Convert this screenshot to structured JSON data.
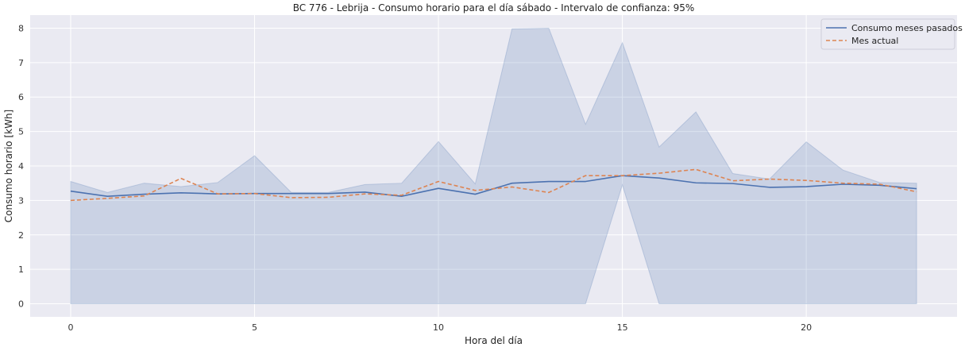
{
  "chart_data": {
    "type": "line",
    "title": "BC 776 - Lebrija - Consumo horario para el día sábado - Intervalo de confianza: 95%",
    "xlabel": "Hora del día",
    "ylabel": "Consumo horario [kWh]",
    "xlim": [
      -1.1,
      24.1
    ],
    "ylim": [
      -0.38,
      8.38
    ],
    "x_ticks": [
      0,
      5,
      10,
      15,
      20
    ],
    "y_ticks": [
      0,
      1,
      2,
      3,
      4,
      5,
      6,
      7,
      8
    ],
    "grid": true,
    "legend_position": "top-right",
    "x": [
      0,
      1,
      2,
      3,
      4,
      5,
      6,
      7,
      8,
      9,
      10,
      11,
      12,
      13,
      14,
      15,
      16,
      17,
      18,
      19,
      20,
      21,
      22,
      23
    ],
    "series": [
      {
        "name": "Consumo meses pasados",
        "style": "solid",
        "color": "#4c72b0",
        "values": [
          3.27,
          3.12,
          3.18,
          3.22,
          3.19,
          3.2,
          3.2,
          3.2,
          3.24,
          3.12,
          3.35,
          3.18,
          3.5,
          3.55,
          3.55,
          3.72,
          3.65,
          3.51,
          3.49,
          3.38,
          3.4,
          3.47,
          3.44,
          3.34
        ]
      },
      {
        "name": "Mes actual",
        "style": "dashed",
        "color": "#dd8452",
        "values": [
          3.0,
          3.06,
          3.13,
          3.64,
          3.19,
          3.2,
          3.08,
          3.09,
          3.19,
          3.15,
          3.55,
          3.29,
          3.39,
          3.23,
          3.72,
          3.72,
          3.79,
          3.9,
          3.57,
          3.62,
          3.58,
          3.5,
          3.47,
          3.25
        ]
      }
    ],
    "confidence_band": {
      "color": "#4c72b0",
      "upper": [
        3.55,
        3.23,
        3.5,
        3.4,
        3.52,
        4.3,
        3.23,
        3.23,
        3.46,
        3.5,
        4.71,
        3.48,
        7.98,
        8.0,
        5.21,
        7.58,
        4.55,
        5.57,
        3.78,
        3.62,
        4.7,
        3.88,
        3.52,
        3.5
      ],
      "lower": [
        0,
        0,
        0,
        0,
        0,
        0,
        0,
        0,
        0,
        0,
        0,
        0,
        0,
        0,
        0,
        3.45,
        0,
        0,
        0,
        0,
        0,
        0,
        0,
        0
      ]
    }
  }
}
